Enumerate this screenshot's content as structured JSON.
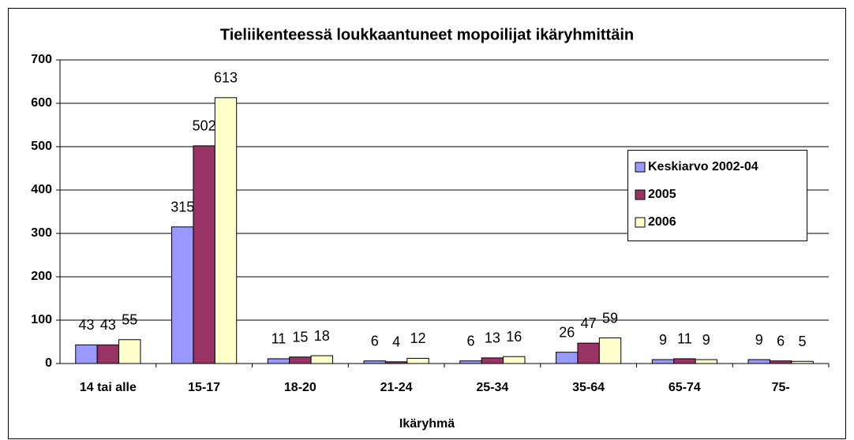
{
  "chart_data": {
    "type": "bar",
    "title": "Tieliikenteessä loukkaantuneet mopoilijat ikäryhmittäin",
    "x_label": "Ikäryhmä",
    "categories": [
      "14 tai alle",
      "15-17",
      "18-20",
      "21-24",
      "25-34",
      "35-64",
      "65-74",
      "75-"
    ],
    "series": [
      {
        "name": "Keskiarvo 2002-04",
        "color": "#9999ff",
        "values": [
          43,
          315,
          11,
          6,
          6,
          26,
          9,
          9
        ]
      },
      {
        "name": "2005",
        "color": "#993366",
        "values": [
          43,
          502,
          15,
          4,
          13,
          47,
          11,
          6
        ]
      },
      {
        "name": "2006",
        "color": "#ffffcc",
        "values": [
          55,
          613,
          18,
          12,
          16,
          59,
          9,
          5
        ]
      }
    ],
    "ylim": [
      0,
      700
    ],
    "yticks": [
      0,
      100,
      200,
      300,
      400,
      500,
      600,
      700
    ],
    "grid": true,
    "legend": "right"
  }
}
